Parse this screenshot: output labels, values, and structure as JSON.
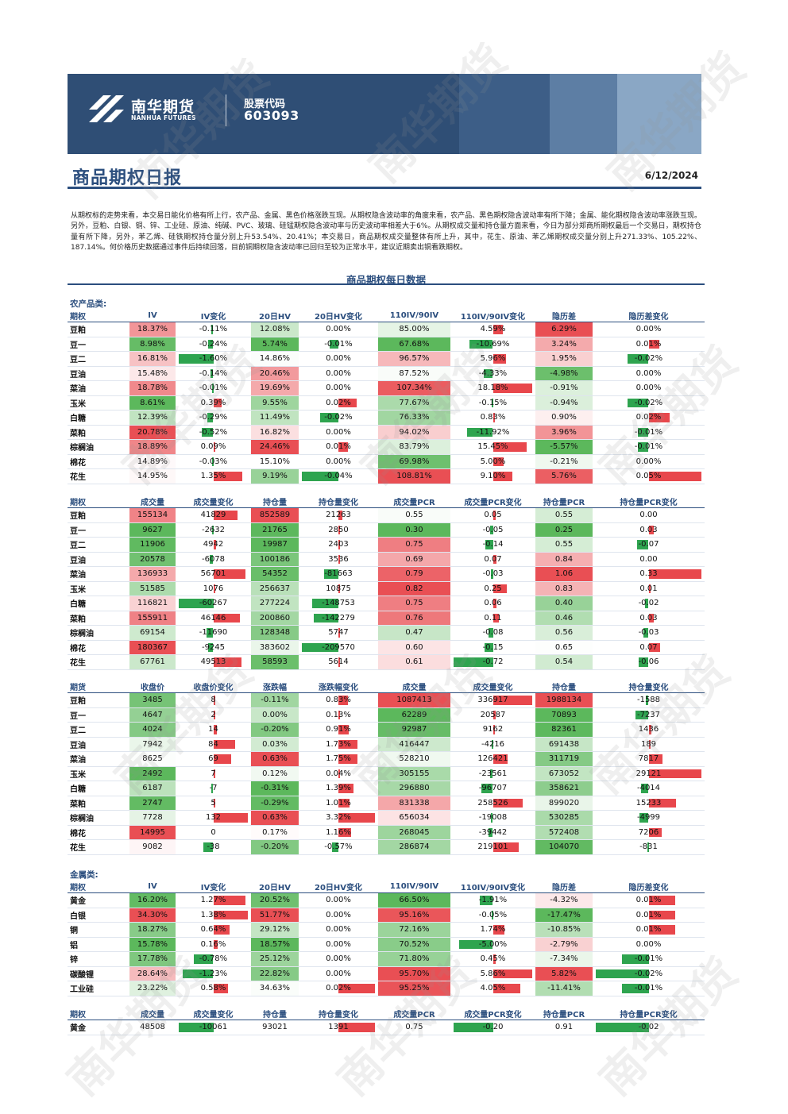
{
  "header": {
    "company_cn": "南华期货",
    "company_en": "NANHUA FUTURES",
    "stock_label": "股票代码",
    "stock_code": "603093"
  },
  "report": {
    "title": "商品期权日报",
    "date": "6/12/2024",
    "summary": "从期权标的走势来看，本交易日能化价格有所上行，农产品、金属、黑色价格涨跌互现。从期权隐含波动率的角度来看，农产品、黑色期权隐含波动率有所下降；金属、能化期权隐含波动率涨跌互现。另外，豆粕、白银、铜、锌、工业硅、原油、纯碱、PVC、玻璃、硅锰期权隐含波动率与历史波动率相差大于6%。从期权成交量和持仓量方面来看，今日为部分郑商所期权最后一个交易日，期权持仓量有所下降，另外，苯乙烯、硅铁期权持仓量分别上升53.54%、20.41%；本交易日，商品期权成交量整体有所上升，其中，花生、原油、苯乙烯期权成交量分别上升271.33%、105.22%、187.14%。何价格历史数据通过事件后持续回落，目前铜期权隐含波动率已回归至较为正常水平，建议近期卖出铜看跌期权。",
    "section_title": "商品期权每日数据"
  },
  "watermark_text": "南华期货",
  "colors": {
    "brand": "#2b4e7e",
    "pos": "#e8474c",
    "neg": "#2ea44f"
  },
  "ag_vol": {
    "category": "农产品类:",
    "headers": [
      "期权",
      "IV",
      "IV变化",
      "20日HV",
      "20日HV变化",
      "110IV/90IV",
      "110IV/90IV变化",
      "隐历差",
      "隐历差变化"
    ],
    "rows": [
      [
        "豆粕",
        "18.37%",
        "-0.11%",
        "12.08%",
        "0.00%",
        "85.00%",
        "4.59%",
        "6.29%",
        "0.00%"
      ],
      [
        "豆一",
        "8.98%",
        "-0.24%",
        "5.74%",
        "-0.01%",
        "67.68%",
        "-10.69%",
        "3.24%",
        "0.01%"
      ],
      [
        "豆二",
        "16.81%",
        "-1.60%",
        "14.86%",
        "0.00%",
        "96.57%",
        "5.96%",
        "1.95%",
        "-0.02%"
      ],
      [
        "豆油",
        "15.48%",
        "-0.14%",
        "20.46%",
        "0.00%",
        "87.52%",
        "-4.33%",
        "-4.98%",
        "0.00%"
      ],
      [
        "菜油",
        "18.78%",
        "-0.01%",
        "19.69%",
        "0.00%",
        "107.34%",
        "18.18%",
        "-0.91%",
        "0.00%"
      ],
      [
        "玉米",
        "8.61%",
        "0.39%",
        "9.55%",
        "0.02%",
        "77.67%",
        "-0.15%",
        "-0.94%",
        "-0.02%"
      ],
      [
        "白糖",
        "12.39%",
        "-0.29%",
        "11.49%",
        "-0.02%",
        "76.33%",
        "0.83%",
        "0.90%",
        "0.02%"
      ],
      [
        "菜粕",
        "20.78%",
        "-0.52%",
        "16.82%",
        "0.00%",
        "94.02%",
        "-11.92%",
        "3.96%",
        "-0.01%"
      ],
      [
        "棕榈油",
        "18.89%",
        "0.09%",
        "24.46%",
        "0.01%",
        "83.79%",
        "15.45%",
        "-5.57%",
        "-0.01%"
      ],
      [
        "棉花",
        "14.89%",
        "-0.03%",
        "15.10%",
        "0.00%",
        "69.98%",
        "5.00%",
        "-0.21%",
        "0.00%"
      ],
      [
        "花生",
        "14.95%",
        "1.35%",
        "9.19%",
        "-0.04%",
        "108.81%",
        "9.10%",
        "5.76%",
        "0.05%"
      ]
    ]
  },
  "ag_oi": {
    "headers": [
      "期权",
      "成交量",
      "成交量变化",
      "持仓量",
      "持仓量变化",
      "成交量PCR",
      "成交量PCR变化",
      "持仓量PCR",
      "持仓量PCR变化"
    ],
    "rows": [
      [
        "豆粕",
        "155134",
        "41829",
        "852589",
        "21263",
        "0.55",
        "0.05",
        "0.55",
        "0.00"
      ],
      [
        "豆一",
        "9627",
        "-2632",
        "21765",
        "2850",
        "0.30",
        "-0.05",
        "0.25",
        "0.03"
      ],
      [
        "豆二",
        "11906",
        "4942",
        "19987",
        "2403",
        "0.75",
        "-0.14",
        "0.55",
        "-0.07"
      ],
      [
        "豆油",
        "20578",
        "-6078",
        "100186",
        "3536",
        "0.69",
        "0.07",
        "0.84",
        "0.00"
      ],
      [
        "菜油",
        "136933",
        "56701",
        "54352",
        "-81663",
        "0.79",
        "-0.03",
        "1.06",
        "0.33"
      ],
      [
        "玉米",
        "51585",
        "1076",
        "256637",
        "10875",
        "0.82",
        "0.25",
        "0.83",
        "0.01"
      ],
      [
        "白糖",
        "116821",
        "-60267",
        "277224",
        "-148753",
        "0.75",
        "0.06",
        "0.40",
        "-0.02"
      ],
      [
        "菜粕",
        "155911",
        "46146",
        "200860",
        "-142279",
        "0.76",
        "0.11",
        "0.46",
        "0.03"
      ],
      [
        "棕榈油",
        "69154",
        "-11690",
        "128348",
        "5747",
        "0.47",
        "-0.08",
        "0.56",
        "-0.03"
      ],
      [
        "棉花",
        "180367",
        "-9245",
        "383602",
        "-209570",
        "0.60",
        "-0.15",
        "0.65",
        "0.07"
      ],
      [
        "花生",
        "67761",
        "49513",
        "58593",
        "5614",
        "0.61",
        "-0.72",
        "0.54",
        "-0.06"
      ]
    ]
  },
  "ag_fut": {
    "headers": [
      "期货",
      "收盘价",
      "收盘价变化",
      "涨跌幅",
      "涨跌幅变化",
      "成交量",
      "成交量变化",
      "持仓量",
      "持仓量变化"
    ],
    "rows": [
      [
        "豆粕",
        "3485",
        "8",
        "-0.11%",
        "0.83%",
        "1087413",
        "336917",
        "1988134",
        "-1588"
      ],
      [
        "豆一",
        "4647",
        "2",
        "0.00%",
        "0.13%",
        "62289",
        "20587",
        "70893",
        "-7237"
      ],
      [
        "豆二",
        "4024",
        "14",
        "-0.20%",
        "0.91%",
        "92987",
        "9162",
        "82361",
        "1436"
      ],
      [
        "豆油",
        "7942",
        "84",
        "0.03%",
        "1.73%",
        "416447",
        "-4216",
        "691438",
        "189"
      ],
      [
        "菜油",
        "8625",
        "69",
        "0.63%",
        "1.75%",
        "528210",
        "126421",
        "311719",
        "7817"
      ],
      [
        "玉米",
        "2492",
        "7",
        "0.12%",
        "0.04%",
        "305155",
        "-23561",
        "673052",
        "29121"
      ],
      [
        "白糖",
        "6187",
        "-7",
        "-0.31%",
        "1.39%",
        "296880",
        "-96707",
        "358621",
        "-4014"
      ],
      [
        "菜粕",
        "2747",
        "5",
        "-0.29%",
        "1.01%",
        "831338",
        "258526",
        "899020",
        "15233"
      ],
      [
        "棕榈油",
        "7728",
        "132",
        "0.63%",
        "3.32%",
        "656034",
        "-19008",
        "530285",
        "-4999"
      ],
      [
        "棉花",
        "14995",
        "0",
        "0.17%",
        "1.16%",
        "268045",
        "-39442",
        "572408",
        "7206"
      ],
      [
        "花生",
        "9082",
        "-38",
        "-0.20%",
        "-0.57%",
        "286874",
        "219101",
        "104070",
        "-831"
      ]
    ]
  },
  "metal_vol": {
    "category": "金属类:",
    "headers": [
      "期权",
      "IV",
      "IV变化",
      "20日HV",
      "20日HV变化",
      "110IV/90IV",
      "110IV/90IV变化",
      "隐历差",
      "隐历差变化"
    ],
    "rows": [
      [
        "黄金",
        "16.20%",
        "1.27%",
        "20.52%",
        "0.00%",
        "66.50%",
        "-1.91%",
        "-4.32%",
        "0.01%"
      ],
      [
        "白银",
        "34.30%",
        "1.38%",
        "51.77%",
        "0.00%",
        "95.16%",
        "-0.05%",
        "-17.47%",
        "0.01%"
      ],
      [
        "铜",
        "18.27%",
        "0.64%",
        "29.12%",
        "0.00%",
        "72.16%",
        "1.74%",
        "-10.85%",
        "0.01%"
      ],
      [
        "铝",
        "15.78%",
        "0.16%",
        "18.57%",
        "0.00%",
        "70.52%",
        "-5.00%",
        "-2.79%",
        "0.00%"
      ],
      [
        "锌",
        "17.78%",
        "-0.78%",
        "25.12%",
        "0.00%",
        "71.80%",
        "0.45%",
        "-7.34%",
        "-0.01%"
      ],
      [
        "碳酸锂",
        "28.64%",
        "-1.23%",
        "22.82%",
        "0.00%",
        "95.70%",
        "5.86%",
        "5.82%",
        "-0.02%"
      ],
      [
        "工业硅",
        "23.22%",
        "0.58%",
        "34.63%",
        "0.02%",
        "95.25%",
        "4.05%",
        "-11.41%",
        "-0.01%"
      ]
    ]
  },
  "metal_oi": {
    "headers": [
      "期权",
      "成交量",
      "成交量变化",
      "持仓量",
      "持仓量变化",
      "成交量PCR",
      "成交量PCR变化",
      "持仓量PCR",
      "持仓量PCR变化"
    ],
    "rows": [
      [
        "黄金",
        "48508",
        "-10061",
        "93021",
        "1391",
        "0.75",
        "-0.20",
        "0.91",
        "-0.02"
      ]
    ]
  }
}
